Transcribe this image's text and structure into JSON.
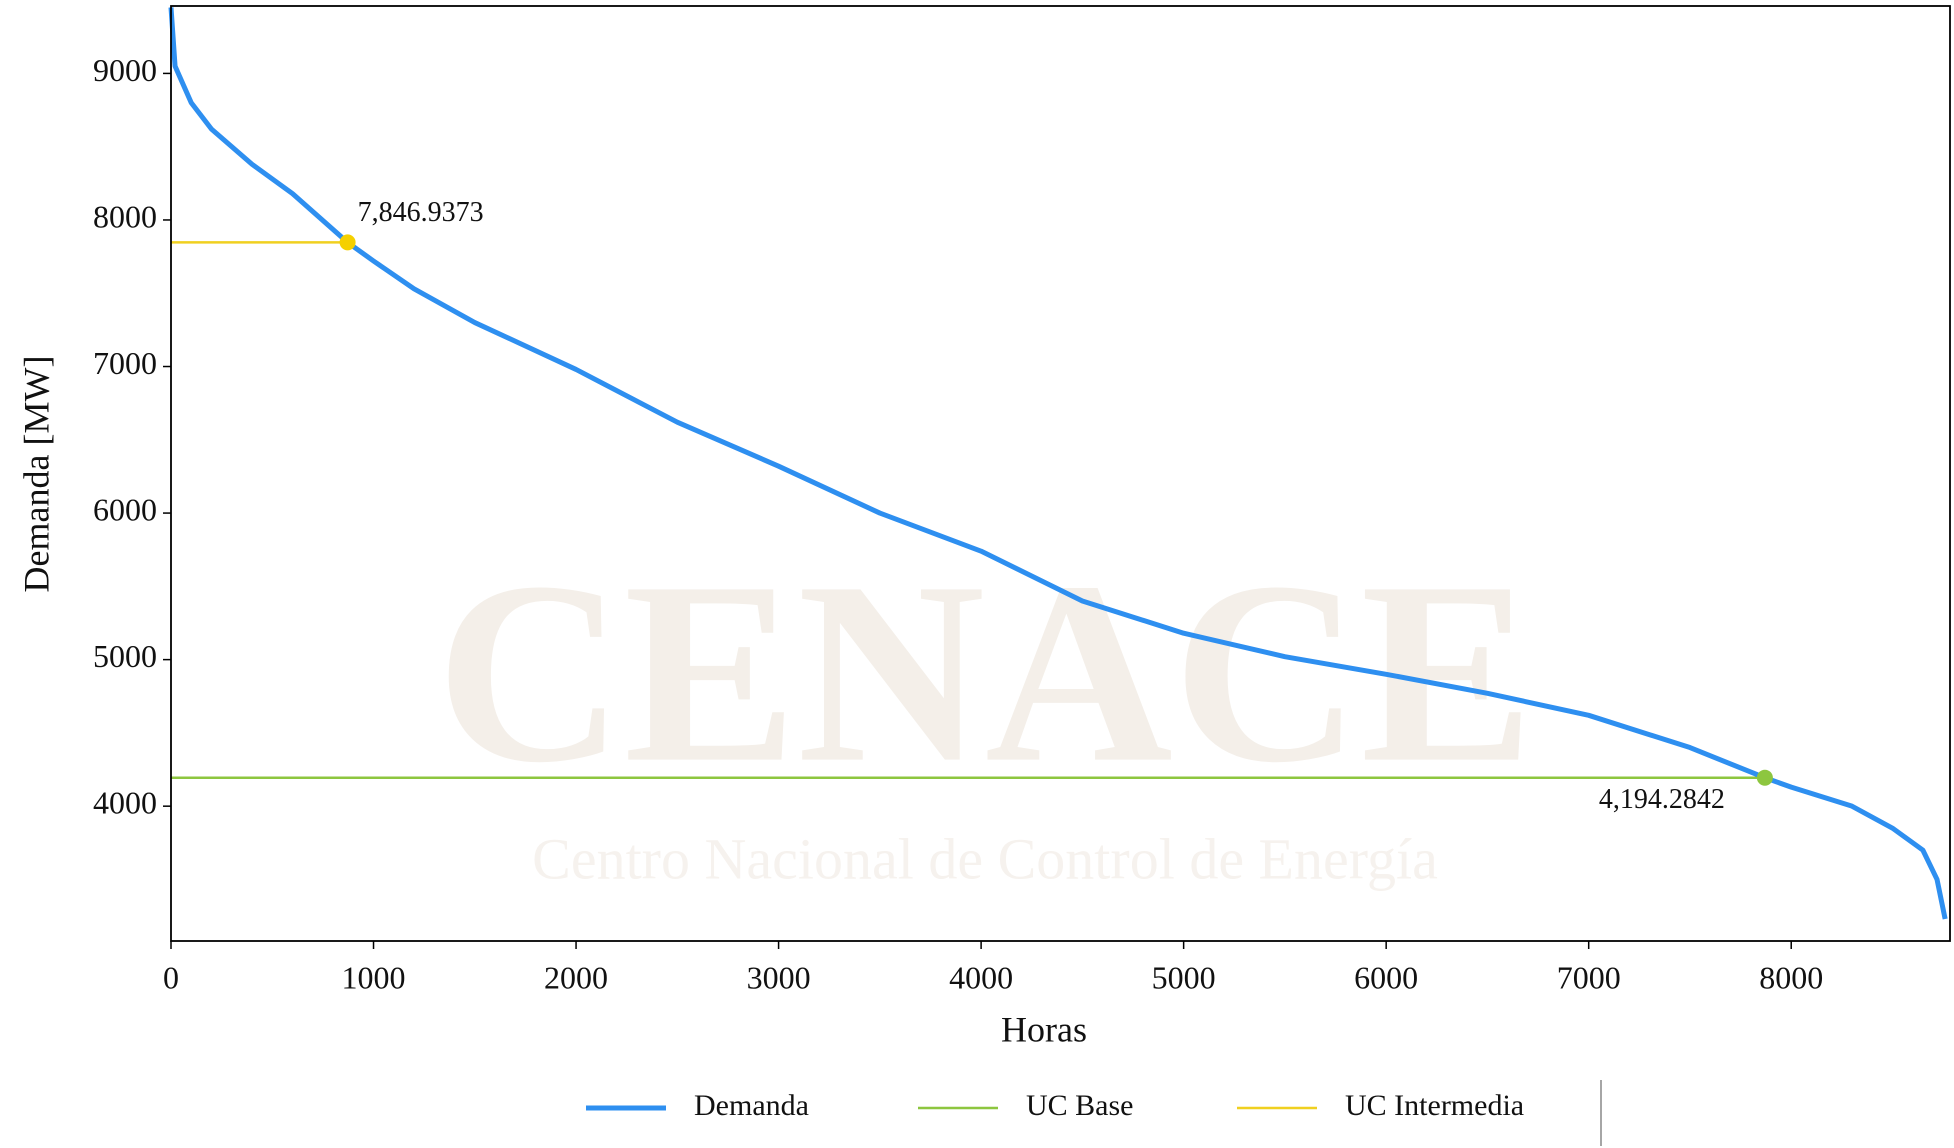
{
  "chart_data": {
    "type": "line",
    "xlabel": "Horas",
    "ylabel": "Demanda [MW]",
    "watermark": {
      "title": "CENACE",
      "subtitle": "Centro Nacional de Control de Energía"
    },
    "xlim": [
      0,
      8784
    ],
    "ylim": [
      3080,
      9460
    ],
    "xticks": [
      0,
      1000,
      2000,
      3000,
      4000,
      5000,
      6000,
      7000,
      8000
    ],
    "yticks": [
      4000,
      5000,
      6000,
      7000,
      8000,
      9000
    ],
    "legend": "lower center",
    "series": [
      {
        "name": "Demanda",
        "color": "#2e8ff0",
        "width": 5,
        "x": [
          0,
          20,
          100,
          200,
          400,
          600,
          872,
          1000,
          1200,
          1500,
          2000,
          2500,
          3000,
          3500,
          4000,
          4500,
          5000,
          5500,
          6000,
          6500,
          7000,
          7500,
          7870,
          8000,
          8300,
          8500,
          8650,
          8720,
          8760
        ],
        "values": [
          9450,
          9050,
          8800,
          8620,
          8380,
          8180,
          7847,
          7720,
          7530,
          7300,
          6980,
          6620,
          6320,
          6000,
          5740,
          5400,
          5180,
          5020,
          4900,
          4770,
          4620,
          4400,
          4194,
          4130,
          4000,
          3850,
          3700,
          3500,
          3230
        ]
      },
      {
        "name": "UC Base",
        "color": "#8dc63f",
        "width": 2.5,
        "x": [
          0,
          7870
        ],
        "values": [
          4194.2842,
          4194.2842
        ]
      },
      {
        "name": "UC Intermedia",
        "color": "#f0d020",
        "width": 2.5,
        "x": [
          0,
          872
        ],
        "values": [
          7846.9373,
          7846.9373
        ]
      }
    ],
    "points": [
      {
        "x": 872,
        "value": 7846.9373,
        "label": "7,846.9373",
        "color": "#f5d000"
      },
      {
        "x": 7870,
        "value": 4194.2842,
        "label": "4,194.2842",
        "color": "#8dc63f"
      }
    ]
  }
}
